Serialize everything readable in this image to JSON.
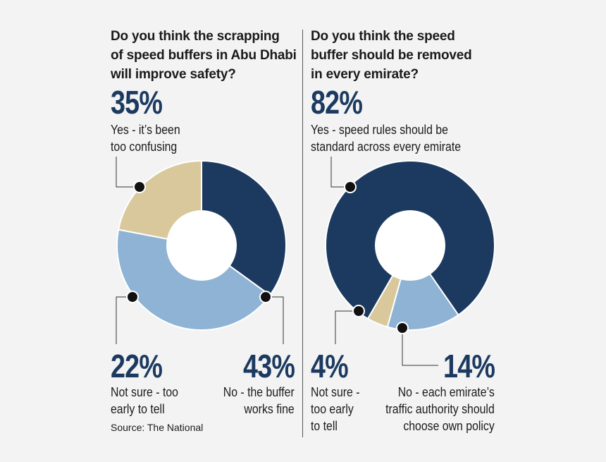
{
  "chart_data": [
    {
      "type": "pie",
      "title": "Do you think the scrapping\nof speed buffers in Abu Dhabi\nwill improve safety?",
      "slices": [
        {
          "label": "Yes - it’s been\ntoo confusing",
          "value": 35,
          "value_label": "35%",
          "color": "#1c3a60"
        },
        {
          "label": "No - the buffer\nworks fine",
          "value": 43,
          "value_label": "43%",
          "color": "#8eb3d5"
        },
        {
          "label": "Not sure - too\nearly to tell",
          "value": 22,
          "value_label": "22%",
          "color": "#d9c89c"
        }
      ],
      "start_angle_deg": -90,
      "donut": true
    },
    {
      "type": "pie",
      "title": "Do you think the speed\nbuffer should be removed\nin every emirate?",
      "slices": [
        {
          "label": "Yes - speed rules should be\nstandard across every emirate",
          "value": 82,
          "value_label": "82%",
          "color": "#1c3a60"
        },
        {
          "label": "No - each emirate’s\ntraffic authority should\nchoose own policy",
          "value": 14,
          "value_label": "14%",
          "color": "#8eb3d5"
        },
        {
          "label": "Not sure -\ntoo early\nto tell",
          "value": 4,
          "value_label": "4%",
          "color": "#d9c89c"
        }
      ],
      "start_angle_deg": 120,
      "donut": true
    }
  ],
  "source": "Source: The National"
}
